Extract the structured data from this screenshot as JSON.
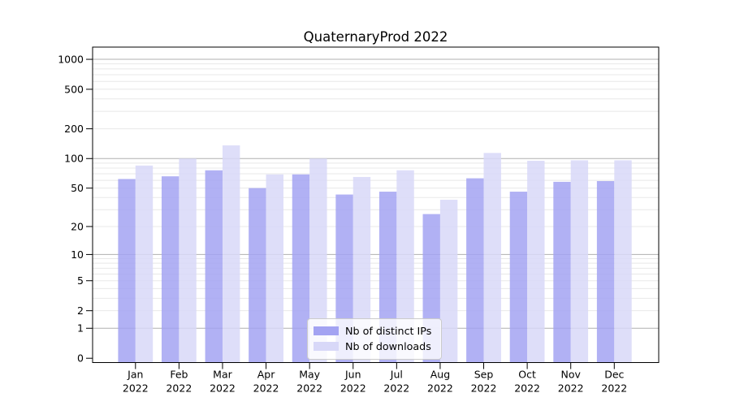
{
  "chart_data": {
    "type": "bar",
    "title": "QuaternaryProd 2022",
    "categories": [
      "Jan",
      "Feb",
      "Mar",
      "Apr",
      "May",
      "Jun",
      "Jul",
      "Aug",
      "Sep",
      "Oct",
      "Nov",
      "Dec"
    ],
    "category_year": "2022",
    "series": [
      {
        "name": "Nb of distinct IPs",
        "color": "#a3a3f2",
        "values": [
          62,
          66,
          76,
          50,
          69,
          43,
          46,
          27,
          63,
          46,
          58,
          59
        ]
      },
      {
        "name": "Nb of downloads",
        "color": "#d8d8f8",
        "values": [
          85,
          100,
          136,
          69,
          100,
          65,
          76,
          38,
          114,
          95,
          96,
          96
        ]
      }
    ],
    "y_ticks": [
      0,
      1,
      2,
      5,
      10,
      20,
      50,
      100,
      200,
      500,
      1000
    ],
    "y_scale": "log10(value+1)",
    "ylim": [
      0,
      1300
    ],
    "grid": true,
    "grid_major_color": "#b0b0b0",
    "grid_minor_color": "#e8e8e8",
    "axis_color": "#000000",
    "legend_position": "lower-center"
  }
}
